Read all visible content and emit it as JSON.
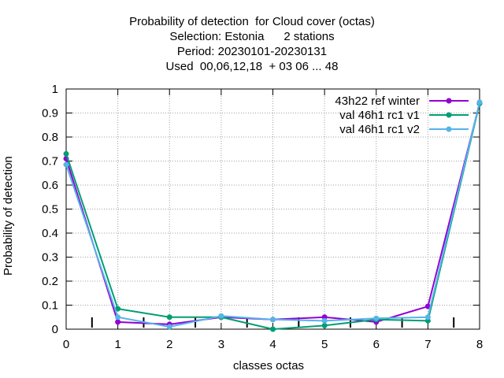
{
  "chart_data": {
    "type": "line",
    "title_lines": [
      "Probability of detection  for Cloud cover (octas)",
      "Selection: Estonia      2 stations",
      "Period: 20230101-20230131",
      "Used  00,06,12,18  + 03 06 ... 48"
    ],
    "xlabel": "classes octas",
    "ylabel": "Probability of detection",
    "xlim": [
      0,
      8
    ],
    "ylim": [
      0,
      1
    ],
    "x_ticks": [
      "0",
      "1",
      "2",
      "3",
      "4",
      "5",
      "6",
      "7",
      "8"
    ],
    "y_ticks": [
      "0",
      "0.1",
      "0.2",
      "0.3",
      "0.4",
      "0.5",
      "0.6",
      "0.7",
      "0.8",
      "0.9",
      "1"
    ],
    "grid": true,
    "legend_position": "top-right",
    "x": [
      0,
      1,
      2,
      3,
      4,
      5,
      6,
      7,
      8
    ],
    "series": [
      {
        "name": "43h22 ref winter",
        "color": "#9400d3",
        "values": [
          0.71,
          0.03,
          0.02,
          0.05,
          0.04,
          0.05,
          0.03,
          0.095,
          0.94
        ]
      },
      {
        "name": "val 46h1 rc1 v1",
        "color": "#009e73",
        "values": [
          0.73,
          0.085,
          0.05,
          0.05,
          0.0,
          0.015,
          0.04,
          0.035,
          0.94
        ]
      },
      {
        "name": "val 46h1 rc1 v2",
        "color": "#56b4e9",
        "values": [
          0.685,
          0.05,
          0.01,
          0.055,
          0.04,
          0.035,
          0.045,
          0.05,
          0.945
        ]
      }
    ],
    "x_markers": [
      0.5,
      1.5,
      2.5,
      3.5,
      4.5,
      5.5,
      6.5,
      7.5
    ]
  }
}
